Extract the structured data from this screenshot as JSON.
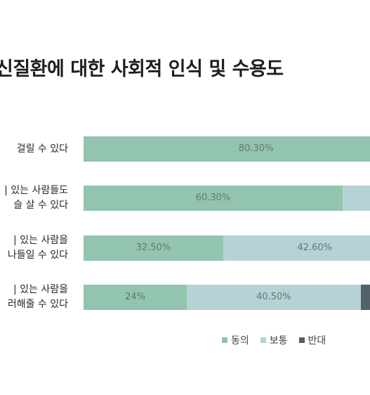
{
  "chart_data": {
    "type": "bar",
    "orientation": "horizontal",
    "stacked": true,
    "title": "신질환에 대한 사회적 인식 및 수용도",
    "categories": [
      [
        "걸릴 수 있다"
      ],
      [
        "| 있는 사람들도",
        "슬 살 수 있다"
      ],
      [
        "| 있는 사람을",
        "나들일 수 있다"
      ],
      [
        "| 있는 사람을",
        "러해줄 수 있다"
      ]
    ],
    "series": [
      {
        "name": "동의",
        "color": "#93c4b0",
        "values": [
          80.3,
          60.3,
          32.5,
          24
        ],
        "labels": [
          "80.30%",
          "60.30%",
          "32.50%",
          "24%"
        ]
      },
      {
        "name": "보통",
        "color": "#b5d3d6",
        "values": [
          null,
          null,
          42.6,
          40.5
        ],
        "labels": [
          "",
          "",
          "42.60%",
          "40.50%"
        ]
      },
      {
        "name": "반대",
        "color": "#53616c",
        "values": [
          null,
          null,
          null,
          null
        ],
        "labels": [
          "",
          "",
          "",
          ""
        ]
      }
    ],
    "xlim": [
      0,
      100
    ],
    "grid": false,
    "legend": "bottom-right"
  }
}
